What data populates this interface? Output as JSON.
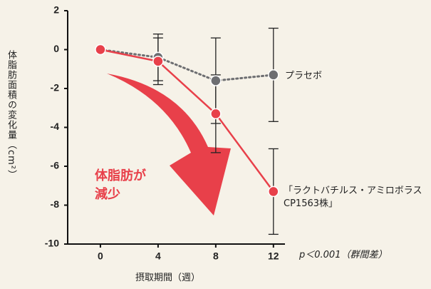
{
  "chart_data": {
    "type": "line",
    "y_label": "体脂肪面積の変化量（cm²）",
    "x_label": "摂取期間（週）",
    "note": "p＜0.001（群間差）",
    "annotations": [
      "体脂肪が",
      "減少"
    ],
    "x": [
      0,
      4,
      8,
      12
    ],
    "xlim": [
      -2.27,
      12.8
    ],
    "xticks": [
      0,
      4,
      8,
      12
    ],
    "ylim": [
      -10,
      2
    ],
    "yticks": [
      2,
      0,
      -2,
      -4,
      -6,
      -8,
      -10
    ],
    "series": [
      {
        "name": "プラセボ",
        "color": "#6d6e71",
        "dash": true,
        "values": [
          0,
          -0.4,
          -1.6,
          -1.3
        ],
        "errors": [
          0,
          1.2,
          2.2,
          2.4
        ]
      },
      {
        "name": "「ラクトバチルス・アミロボラス CP1563株」",
        "color": "#e8404a",
        "dash": false,
        "values": [
          0,
          -0.6,
          -3.3,
          -7.3
        ],
        "errors": [
          0,
          1.2,
          2.0,
          2.2
        ]
      }
    ]
  }
}
